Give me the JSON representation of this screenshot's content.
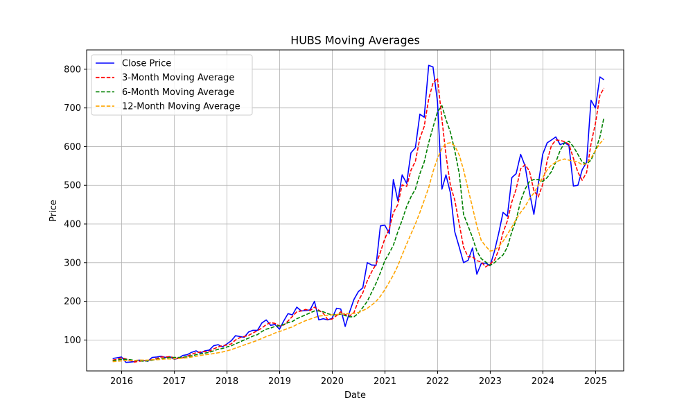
{
  "chart_data": {
    "type": "line",
    "title": "HUBS Moving Averages",
    "xlabel": "Date",
    "ylabel": "Price",
    "xlim": [
      "2015-05-03",
      "2025-07-15"
    ],
    "ylim": [
      20,
      850
    ],
    "xticks": [
      "2016",
      "2017",
      "2018",
      "2019",
      "2020",
      "2021",
      "2022",
      "2023",
      "2024",
      "2025"
    ],
    "yticks": [
      100,
      200,
      300,
      400,
      500,
      600,
      700,
      800
    ],
    "grid": true,
    "legend_position": "upper-left",
    "x": [
      "2015-10-31",
      "2015-11-30",
      "2015-12-31",
      "2016-01-31",
      "2016-02-29",
      "2016-03-31",
      "2016-04-30",
      "2016-05-31",
      "2016-06-30",
      "2016-07-31",
      "2016-08-31",
      "2016-09-30",
      "2016-10-31",
      "2016-11-30",
      "2016-12-31",
      "2017-01-31",
      "2017-02-28",
      "2017-03-31",
      "2017-04-30",
      "2017-05-31",
      "2017-06-30",
      "2017-07-31",
      "2017-08-31",
      "2017-09-30",
      "2017-10-31",
      "2017-11-30",
      "2017-12-31",
      "2018-01-31",
      "2018-02-28",
      "2018-03-31",
      "2018-04-30",
      "2018-05-31",
      "2018-06-30",
      "2018-07-31",
      "2018-08-31",
      "2018-09-30",
      "2018-10-31",
      "2018-11-30",
      "2018-12-31",
      "2019-01-31",
      "2019-02-28",
      "2019-03-31",
      "2019-04-30",
      "2019-05-31",
      "2019-06-30",
      "2019-07-31",
      "2019-08-31",
      "2019-09-30",
      "2019-10-31",
      "2019-11-30",
      "2019-12-31",
      "2020-01-31",
      "2020-02-29",
      "2020-03-31",
      "2020-04-30",
      "2020-05-31",
      "2020-06-30",
      "2020-07-31",
      "2020-08-31",
      "2020-09-30",
      "2020-10-31",
      "2020-11-30",
      "2020-12-31",
      "2021-01-31",
      "2021-02-28",
      "2021-03-31",
      "2021-04-30",
      "2021-05-31",
      "2021-06-30",
      "2021-07-31",
      "2021-08-31",
      "2021-09-30",
      "2021-10-31",
      "2021-11-30",
      "2021-12-31",
      "2022-01-31",
      "2022-02-28",
      "2022-03-31",
      "2022-04-30",
      "2022-05-31",
      "2022-06-30",
      "2022-07-31",
      "2022-08-31",
      "2022-09-30",
      "2022-10-31",
      "2022-11-30",
      "2022-12-31",
      "2023-01-31",
      "2023-02-28",
      "2023-03-31",
      "2023-04-30",
      "2023-05-31",
      "2023-06-30",
      "2023-07-31",
      "2023-08-31",
      "2023-09-30",
      "2023-10-31",
      "2023-11-30",
      "2023-12-31",
      "2024-01-31",
      "2024-02-29",
      "2024-03-31",
      "2024-04-30",
      "2024-05-31",
      "2024-06-30",
      "2024-07-31",
      "2024-08-31",
      "2024-09-30",
      "2024-10-31",
      "2024-11-30",
      "2024-12-31",
      "2025-01-31",
      "2025-02-28"
    ],
    "series": [
      {
        "name": "Close Price",
        "color": "#0000ff",
        "style": "solid",
        "values": [
          52,
          54,
          56,
          42,
          43,
          44,
          48,
          47,
          45,
          55,
          56,
          58,
          55,
          57,
          50,
          53,
          60,
          62,
          68,
          72,
          66,
          72,
          74,
          85,
          88,
          82,
          90,
          98,
          111,
          109,
          107,
          121,
          125,
          125,
          144,
          152,
          138,
          140,
          128,
          150,
          168,
          165,
          185,
          175,
          176,
          178,
          200,
          152,
          155,
          152,
          156,
          182,
          180,
          135,
          172,
          205,
          225,
          235,
          300,
          294,
          293,
          395,
          397,
          375,
          515,
          460,
          527,
          505,
          584,
          597,
          684,
          676,
          810,
          806,
          716,
          490,
          527,
          480,
          380,
          340,
          300,
          306,
          338,
          270,
          298,
          299,
          292,
          330,
          375,
          430,
          420,
          520,
          530,
          580,
          550,
          482,
          425,
          502,
          580,
          610,
          617,
          625,
          605,
          610,
          603,
          498,
          500,
          540,
          560,
          720,
          700,
          780,
          773
        ]
      },
      {
        "name": "3-Month Moving Average",
        "color": "#ff0000",
        "style": "dashed",
        "values": [
          48,
          50,
          54,
          51,
          47,
          43,
          45,
          46,
          47,
          49,
          52,
          56,
          56,
          57,
          54,
          53,
          54,
          58,
          63,
          67,
          69,
          70,
          71,
          77,
          82,
          85,
          87,
          90,
          100,
          106,
          109,
          112,
          118,
          124,
          131,
          140,
          145,
          143,
          136,
          139,
          149,
          161,
          173,
          175,
          179,
          176,
          185,
          177,
          169,
          153,
          154,
          163,
          173,
          166,
          162,
          171,
          201,
          222,
          253,
          276,
          296,
          327,
          362,
          388,
          429,
          450,
          501,
          497,
          539,
          562,
          622,
          652,
          723,
          764,
          777,
          671,
          578,
          499,
          462,
          400,
          340,
          315,
          315,
          305,
          302,
          289,
          296,
          307,
          332,
          378,
          408,
          457,
          490,
          543,
          553,
          537,
          486,
          470,
          502,
          564,
          602,
          617,
          616,
          613,
          606,
          570,
          534,
          513,
          533,
          607,
          660,
          733,
          751
        ]
      },
      {
        "name": "6-Month Moving Average",
        "color": "#008000",
        "style": "dashed",
        "values": [
          46,
          48,
          50,
          50,
          49,
          47,
          47,
          45,
          46,
          48,
          50,
          52,
          53,
          55,
          55,
          55,
          55,
          57,
          59,
          62,
          64,
          66,
          68,
          72,
          76,
          78,
          82,
          85,
          90,
          95,
          100,
          105,
          110,
          114,
          122,
          128,
          131,
          135,
          137,
          140,
          145,
          148,
          155,
          160,
          165,
          170,
          175,
          175,
          173,
          168,
          165,
          165,
          167,
          163,
          160,
          160,
          169,
          184,
          200,
          223,
          247,
          274,
          305,
          325,
          345,
          380,
          410,
          445,
          470,
          490,
          530,
          560,
          610,
          650,
          690,
          706,
          670,
          637,
          590,
          530,
          425,
          395,
          365,
          330,
          310,
          302,
          293,
          300,
          310,
          320,
          340,
          380,
          410,
          460,
          490,
          510,
          515,
          515,
          510,
          520,
          535,
          560,
          590,
          610,
          614,
          600,
          580,
          560,
          555,
          565,
          590,
          625,
          675
        ]
      },
      {
        "name": "12-Month Moving Average",
        "color": "#ffa500",
        "style": "dashed",
        "values": [
          44,
          45,
          46,
          47,
          47,
          47,
          48,
          48,
          48,
          49,
          49,
          50,
          51,
          51,
          51,
          52,
          53,
          54,
          56,
          58,
          60,
          62,
          63,
          65,
          67,
          69,
          72,
          75,
          79,
          83,
          87,
          91,
          95,
          99,
          104,
          109,
          113,
          118,
          122,
          126,
          130,
          134,
          140,
          145,
          150,
          154,
          158,
          162,
          163,
          164,
          165,
          166,
          167,
          168,
          168,
          169,
          171,
          176,
          182,
          190,
          200,
          213,
          230,
          250,
          268,
          292,
          320,
          348,
          374,
          400,
          430,
          461,
          494,
          535,
          570,
          595,
          608,
          610,
          602,
          578,
          540,
          490,
          443,
          395,
          357,
          343,
          330,
          332,
          341,
          355,
          373,
          392,
          412,
          430,
          445,
          465,
          480,
          500,
          520,
          540,
          552,
          560,
          565,
          568,
          565,
          563,
          560,
          553,
          556,
          570,
          590,
          608,
          620
        ]
      }
    ]
  }
}
